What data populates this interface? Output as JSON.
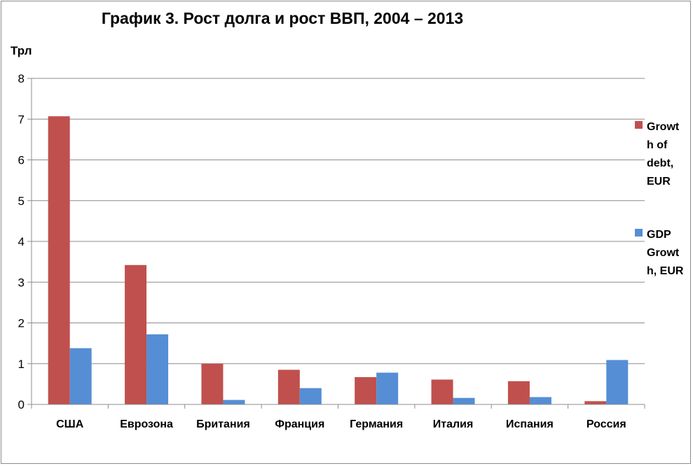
{
  "chart_data": {
    "type": "bar",
    "title": "График 3. Рост долга и рост ВВП, 2004 – 2013",
    "ylabel": "Трл",
    "xlabel": "",
    "ylim": [
      0,
      8
    ],
    "yticks": [
      0,
      1,
      2,
      3,
      4,
      5,
      6,
      7,
      8
    ],
    "grid": true,
    "legend_position": "right",
    "categories": [
      "США",
      "Еврозона",
      "Британия",
      "Франция",
      "Германия",
      "Италия",
      "Испания",
      "Россия"
    ],
    "series": [
      {
        "name": "Growth of debt, EUR",
        "legend_lines": [
          "Growt",
          "h of",
          "debt,",
          "EUR"
        ],
        "color": "#c0504d",
        "values": [
          7.07,
          3.42,
          1.0,
          0.85,
          0.67,
          0.61,
          0.57,
          0.08
        ]
      },
      {
        "name": "GDP Growth, EUR",
        "legend_lines": [
          "GDP",
          "Growt",
          "h, EUR"
        ],
        "color": "#558ed5",
        "values": [
          1.38,
          1.72,
          0.11,
          0.4,
          0.78,
          0.16,
          0.18,
          1.09
        ]
      }
    ]
  }
}
